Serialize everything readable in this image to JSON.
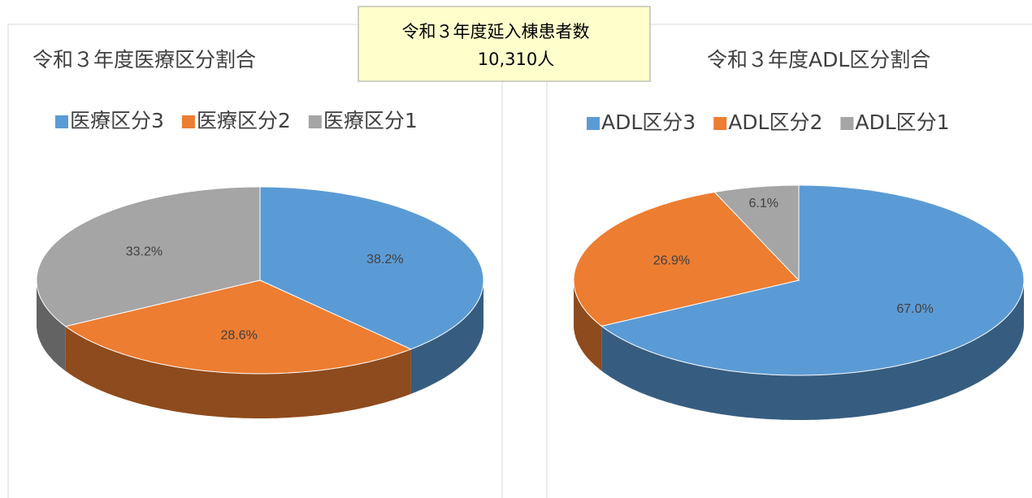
{
  "callout": [
    "令和３年度延入棟患者数",
    "10,310人"
  ],
  "chart_data": [
    {
      "type": "pie",
      "title": "令和３年度医療区分割合",
      "categories": [
        "医療区分3",
        "医療区分2",
        "医療区分1"
      ],
      "values": [
        38.2,
        28.6,
        33.2
      ],
      "value_labels": [
        "38.2%",
        "28.6%",
        "33.2%"
      ],
      "colors": [
        "#5b9bd5",
        "#ed7d31",
        "#a5a5a5"
      ],
      "legend": "top"
    },
    {
      "type": "pie",
      "title": "令和３年度ADL区分割合",
      "categories": [
        "ADL区分3",
        "ADL区分2",
        "ADL区分1"
      ],
      "values": [
        67.0,
        26.9,
        6.1
      ],
      "value_labels": [
        "67.0%",
        "26.9%",
        "6.1%"
      ],
      "colors": [
        "#5b9bd5",
        "#ed7d31",
        "#a5a5a5"
      ],
      "legend": "top"
    }
  ]
}
